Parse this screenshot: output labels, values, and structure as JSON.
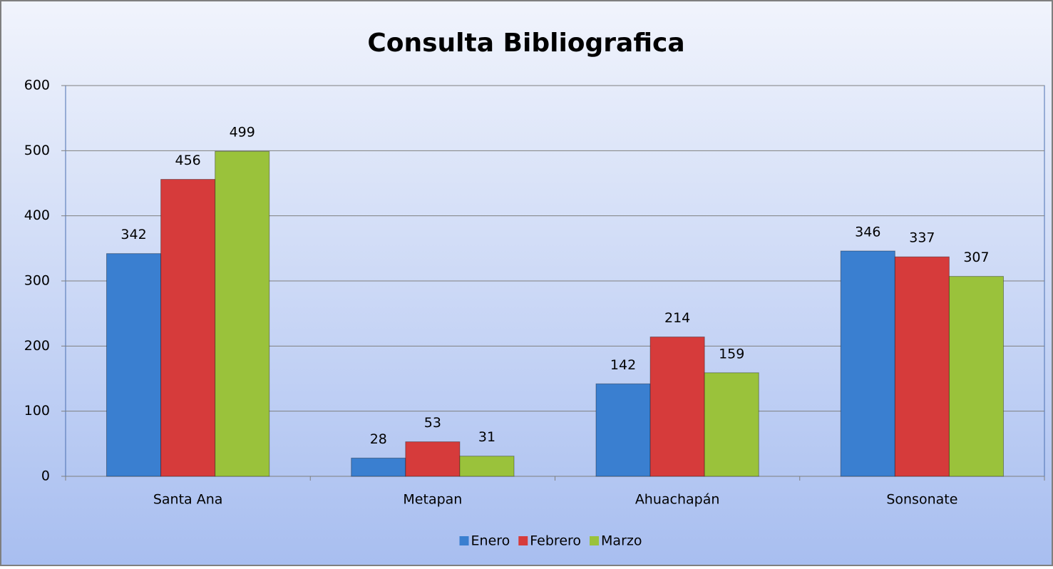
{
  "chart_data": {
    "type": "bar",
    "title": "Consulta Bibliografica",
    "categories": [
      "Santa Ana",
      "Metapan",
      "Ahuachapán",
      "Sonsonate"
    ],
    "series": [
      {
        "name": "Enero",
        "color": "#3a7fd0",
        "values": [
          342,
          28,
          142,
          346
        ]
      },
      {
        "name": "Febrero",
        "color": "#d63b3b",
        "values": [
          456,
          53,
          214,
          337
        ]
      },
      {
        "name": "Marzo",
        "color": "#9ac23b",
        "values": [
          499,
          31,
          159,
          307
        ]
      }
    ],
    "ylim": [
      0,
      600
    ],
    "yticks": [
      0,
      100,
      200,
      300,
      400,
      500,
      600
    ],
    "grid": true,
    "legend": "bottom"
  }
}
